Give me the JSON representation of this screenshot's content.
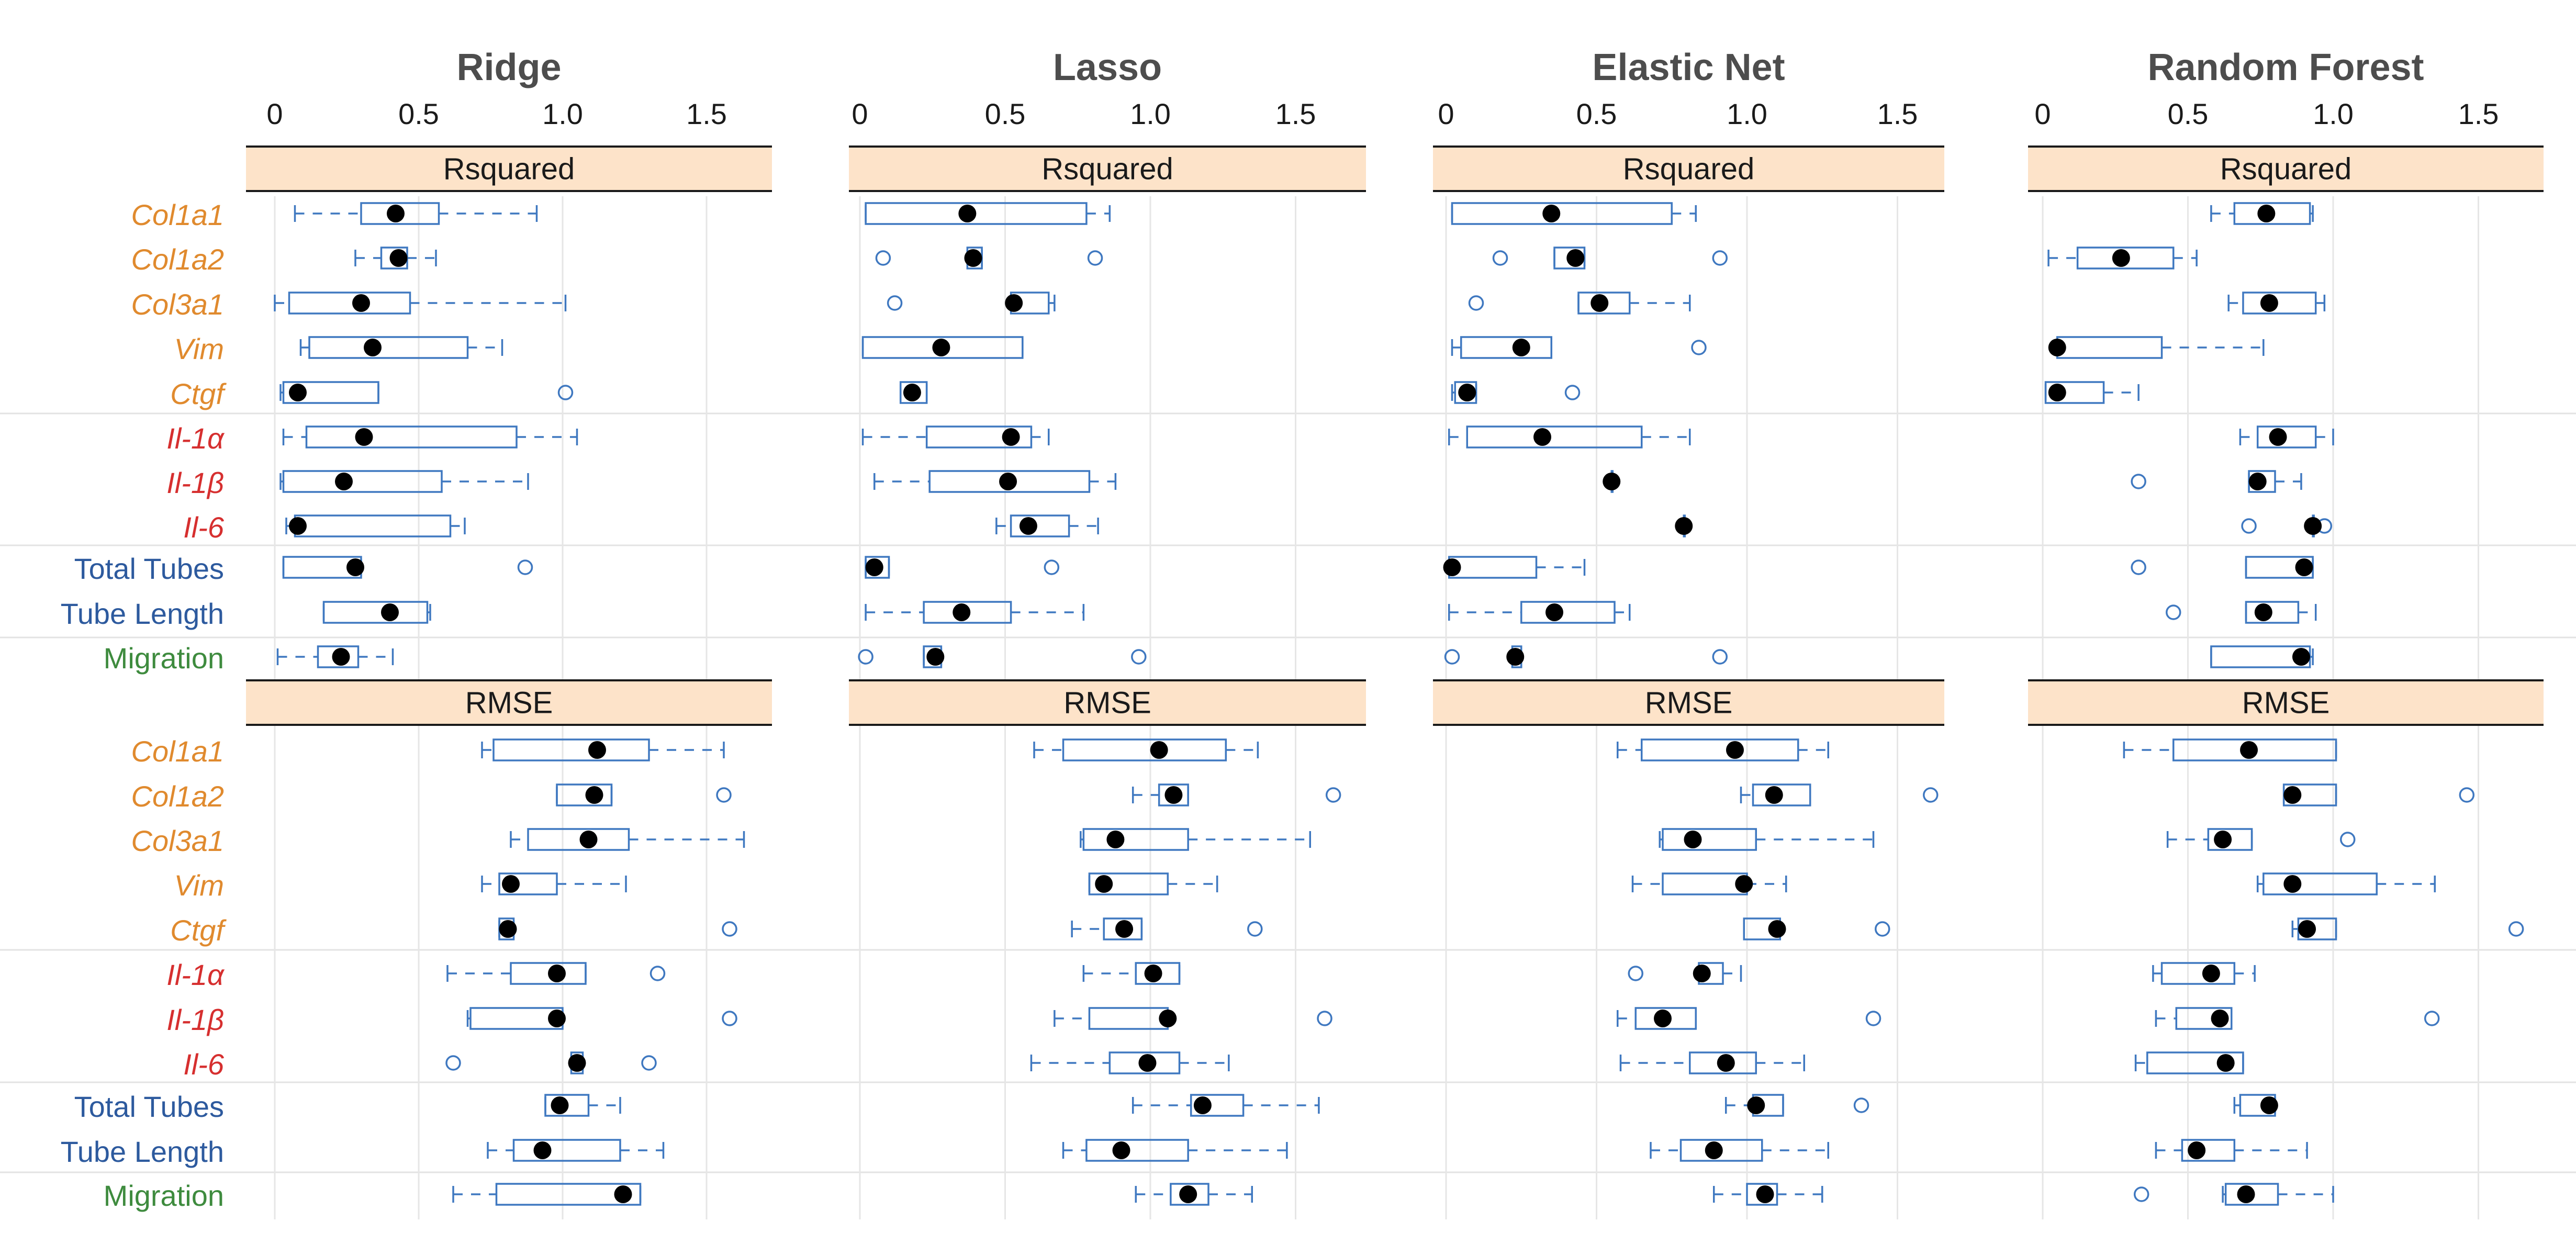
{
  "colors": {
    "fibrotic": "#E08A2E",
    "inflammatory": "#D62F2F",
    "tubes": "#2D5A9E",
    "migration": "#3E8B3E",
    "box": "#3F78C0",
    "strip_fill": "#FDE3C9",
    "grid": "#E6E6E6",
    "point": "#000000"
  },
  "chart_data": {
    "type": "boxplot",
    "x_ticks": [
      "0",
      "0.5",
      "1.0",
      "1.5"
    ],
    "xlim": [
      -0.1,
      1.72
    ],
    "metrics": [
      "Rsquared",
      "RMSE"
    ],
    "rows": [
      {
        "label": "Col1a1",
        "group": "fibrotic"
      },
      {
        "label": "Col1a2",
        "group": "fibrotic"
      },
      {
        "label": "Col3a1",
        "group": "fibrotic"
      },
      {
        "label": "Vim",
        "group": "fibrotic"
      },
      {
        "label": "Ctgf",
        "group": "fibrotic"
      },
      {
        "label": "Il-1α",
        "group": "inflammatory"
      },
      {
        "label": "Il-1β",
        "group": "inflammatory"
      },
      {
        "label": "Il-6",
        "group": "inflammatory"
      },
      {
        "label": "Total Tubes",
        "group": "tubes"
      },
      {
        "label": "Tube Length",
        "group": "tubes"
      },
      {
        "label": "Migration",
        "group": "migration"
      }
    ],
    "panels": [
      {
        "title": "Ridge",
        "Rsquared": [
          {
            "wl": 0.07,
            "q1": 0.3,
            "q3": 0.57,
            "wh": 0.91,
            "mean": 0.42,
            "out": []
          },
          {
            "wl": 0.28,
            "q1": 0.37,
            "q3": 0.46,
            "wh": 0.56,
            "mean": 0.43,
            "out": []
          },
          {
            "wl": 0.0,
            "q1": 0.05,
            "q3": 0.47,
            "wh": 1.01,
            "mean": 0.3,
            "out": []
          },
          {
            "wl": 0.09,
            "q1": 0.12,
            "q3": 0.67,
            "wh": 0.79,
            "mean": 0.34,
            "out": []
          },
          {
            "wl": 0.02,
            "q1": 0.03,
            "q3": 0.36,
            "wh": 0.36,
            "mean": 0.08,
            "out": [
              1.01
            ]
          },
          {
            "wl": 0.03,
            "q1": 0.11,
            "q3": 0.84,
            "wh": 1.05,
            "mean": 0.31,
            "out": []
          },
          {
            "wl": 0.02,
            "q1": 0.03,
            "q3": 0.58,
            "wh": 0.88,
            "mean": 0.24,
            "out": []
          },
          {
            "wl": 0.04,
            "q1": 0.07,
            "q3": 0.61,
            "wh": 0.66,
            "mean": 0.08,
            "out": []
          },
          {
            "wl": 0.03,
            "q1": 0.03,
            "q3": 0.3,
            "wh": 0.3,
            "mean": 0.28,
            "out": [
              0.87
            ]
          },
          {
            "wl": 0.17,
            "q1": 0.17,
            "q3": 0.53,
            "wh": 0.54,
            "mean": 0.4,
            "out": []
          },
          {
            "wl": 0.01,
            "q1": 0.15,
            "q3": 0.29,
            "wh": 0.41,
            "mean": 0.23,
            "out": []
          }
        ],
        "RMSE": [
          {
            "wl": 0.72,
            "q1": 0.76,
            "q3": 1.3,
            "wh": 1.56,
            "mean": 1.12,
            "out": []
          },
          {
            "wl": 0.98,
            "q1": 0.98,
            "q3": 1.17,
            "wh": 1.17,
            "mean": 1.11,
            "out": [
              1.56
            ]
          },
          {
            "wl": 0.82,
            "q1": 0.88,
            "q3": 1.23,
            "wh": 1.63,
            "mean": 1.09,
            "out": []
          },
          {
            "wl": 0.72,
            "q1": 0.78,
            "q3": 0.98,
            "wh": 1.22,
            "mean": 0.82,
            "out": []
          },
          {
            "wl": 0.78,
            "q1": 0.78,
            "q3": 0.83,
            "wh": 0.83,
            "mean": 0.81,
            "out": [
              1.58
            ]
          },
          {
            "wl": 0.6,
            "q1": 0.82,
            "q3": 1.08,
            "wh": 1.08,
            "mean": 0.98,
            "out": [
              1.33
            ]
          },
          {
            "wl": 0.67,
            "q1": 0.68,
            "q3": 1.0,
            "wh": 1.0,
            "mean": 0.98,
            "out": [
              1.58
            ]
          },
          {
            "wl": 1.03,
            "q1": 1.03,
            "q3": 1.07,
            "wh": 1.07,
            "mean": 1.05,
            "out": [
              0.62,
              1.3
            ]
          },
          {
            "wl": 0.94,
            "q1": 0.94,
            "q3": 1.09,
            "wh": 1.2,
            "mean": 0.99,
            "out": []
          },
          {
            "wl": 0.74,
            "q1": 0.83,
            "q3": 1.2,
            "wh": 1.35,
            "mean": 0.93,
            "out": []
          },
          {
            "wl": 0.62,
            "q1": 0.77,
            "q3": 1.27,
            "wh": 1.27,
            "mean": 1.21,
            "out": []
          }
        ]
      },
      {
        "title": "Lasso",
        "Rsquared": [
          {
            "wl": 0.02,
            "q1": 0.02,
            "q3": 0.78,
            "wh": 0.86,
            "mean": 0.37,
            "out": []
          },
          {
            "wl": 0.37,
            "q1": 0.37,
            "q3": 0.42,
            "wh": 0.42,
            "mean": 0.39,
            "out": [
              0.08,
              0.81
            ]
          },
          {
            "wl": 0.52,
            "q1": 0.52,
            "q3": 0.65,
            "wh": 0.67,
            "mean": 0.53,
            "out": [
              0.12
            ]
          },
          {
            "wl": 0.01,
            "q1": 0.01,
            "q3": 0.56,
            "wh": 0.56,
            "mean": 0.28,
            "out": []
          },
          {
            "wl": 0.14,
            "q1": 0.14,
            "q3": 0.23,
            "wh": 0.23,
            "mean": 0.18,
            "out": []
          },
          {
            "wl": 0.01,
            "q1": 0.23,
            "q3": 0.59,
            "wh": 0.65,
            "mean": 0.52,
            "out": []
          },
          {
            "wl": 0.05,
            "q1": 0.24,
            "q3": 0.79,
            "wh": 0.88,
            "mean": 0.51,
            "out": []
          },
          {
            "wl": 0.47,
            "q1": 0.52,
            "q3": 0.72,
            "wh": 0.82,
            "mean": 0.58,
            "out": []
          },
          {
            "wl": 0.02,
            "q1": 0.02,
            "q3": 0.1,
            "wh": 0.1,
            "mean": 0.05,
            "out": [
              0.66
            ]
          },
          {
            "wl": 0.02,
            "q1": 0.22,
            "q3": 0.52,
            "wh": 0.77,
            "mean": 0.35,
            "out": []
          },
          {
            "wl": 0.22,
            "q1": 0.22,
            "q3": 0.28,
            "wh": 0.28,
            "mean": 0.26,
            "out": [
              0.02,
              0.96
            ]
          }
        ],
        "RMSE": [
          {
            "wl": 0.6,
            "q1": 0.7,
            "q3": 1.26,
            "wh": 1.37,
            "mean": 1.03,
            "out": []
          },
          {
            "wl": 0.94,
            "q1": 1.03,
            "q3": 1.13,
            "wh": 1.13,
            "mean": 1.08,
            "out": [
              1.63
            ]
          },
          {
            "wl": 0.76,
            "q1": 0.77,
            "q3": 1.13,
            "wh": 1.55,
            "mean": 0.88,
            "out": []
          },
          {
            "wl": 0.79,
            "q1": 0.79,
            "q3": 1.06,
            "wh": 1.23,
            "mean": 0.84,
            "out": []
          },
          {
            "wl": 0.73,
            "q1": 0.84,
            "q3": 0.97,
            "wh": 0.97,
            "mean": 0.91,
            "out": [
              1.36
            ]
          },
          {
            "wl": 0.77,
            "q1": 0.95,
            "q3": 1.1,
            "wh": 1.1,
            "mean": 1.01,
            "out": []
          },
          {
            "wl": 0.67,
            "q1": 0.79,
            "q3": 1.06,
            "wh": 1.06,
            "mean": 1.06,
            "out": [
              1.6
            ]
          },
          {
            "wl": 0.59,
            "q1": 0.86,
            "q3": 1.1,
            "wh": 1.27,
            "mean": 0.99,
            "out": []
          },
          {
            "wl": 0.94,
            "q1": 1.14,
            "q3": 1.32,
            "wh": 1.58,
            "mean": 1.18,
            "out": []
          },
          {
            "wl": 0.7,
            "q1": 0.78,
            "q3": 1.13,
            "wh": 1.47,
            "mean": 0.9,
            "out": []
          },
          {
            "wl": 0.95,
            "q1": 1.07,
            "q3": 1.2,
            "wh": 1.35,
            "mean": 1.13,
            "out": []
          }
        ]
      },
      {
        "title": "Elastic Net",
        "Rsquared": [
          {
            "wl": 0.02,
            "q1": 0.02,
            "q3": 0.75,
            "wh": 0.83,
            "mean": 0.35,
            "out": []
          },
          {
            "wl": 0.36,
            "q1": 0.36,
            "q3": 0.46,
            "wh": 0.46,
            "mean": 0.43,
            "out": [
              0.18,
              0.91
            ]
          },
          {
            "wl": 0.44,
            "q1": 0.44,
            "q3": 0.61,
            "wh": 0.81,
            "mean": 0.51,
            "out": [
              0.1
            ]
          },
          {
            "wl": 0.02,
            "q1": 0.05,
            "q3": 0.35,
            "wh": 0.35,
            "mean": 0.25,
            "out": [
              0.84
            ]
          },
          {
            "wl": 0.02,
            "q1": 0.03,
            "q3": 0.1,
            "wh": 0.1,
            "mean": 0.07,
            "out": [
              0.42
            ]
          },
          {
            "wl": 0.01,
            "q1": 0.07,
            "q3": 0.65,
            "wh": 0.81,
            "mean": 0.32,
            "out": []
          },
          {
            "wl": 0.55,
            "q1": 0.55,
            "q3": 0.55,
            "wh": 0.55,
            "mean": 0.55,
            "out": []
          },
          {
            "wl": 0.79,
            "q1": 0.79,
            "q3": 0.79,
            "wh": 0.79,
            "mean": 0.79,
            "out": []
          },
          {
            "wl": 0.01,
            "q1": 0.01,
            "q3": 0.3,
            "wh": 0.46,
            "mean": 0.02,
            "out": []
          },
          {
            "wl": 0.01,
            "q1": 0.25,
            "q3": 0.56,
            "wh": 0.61,
            "mean": 0.36,
            "out": []
          },
          {
            "wl": 0.22,
            "q1": 0.22,
            "q3": 0.25,
            "wh": 0.25,
            "mean": 0.23,
            "out": [
              0.02,
              0.91
            ]
          }
        ],
        "RMSE": [
          {
            "wl": 0.57,
            "q1": 0.65,
            "q3": 1.17,
            "wh": 1.27,
            "mean": 0.96,
            "out": []
          },
          {
            "wl": 0.98,
            "q1": 1.02,
            "q3": 1.21,
            "wh": 1.21,
            "mean": 1.09,
            "out": [
              1.61
            ]
          },
          {
            "wl": 0.71,
            "q1": 0.72,
            "q3": 1.03,
            "wh": 1.42,
            "mean": 0.82,
            "out": []
          },
          {
            "wl": 0.62,
            "q1": 0.72,
            "q3": 1.0,
            "wh": 1.13,
            "mean": 0.99,
            "out": []
          },
          {
            "wl": 0.99,
            "q1": 0.99,
            "q3": 1.11,
            "wh": 1.11,
            "mean": 1.1,
            "out": [
              1.45
            ]
          },
          {
            "wl": 0.84,
            "q1": 0.84,
            "q3": 0.92,
            "wh": 0.98,
            "mean": 0.85,
            "out": [
              0.63
            ]
          },
          {
            "wl": 0.57,
            "q1": 0.63,
            "q3": 0.83,
            "wh": 0.83,
            "mean": 0.72,
            "out": [
              1.42
            ]
          },
          {
            "wl": 0.58,
            "q1": 0.81,
            "q3": 1.03,
            "wh": 1.19,
            "mean": 0.93,
            "out": []
          },
          {
            "wl": 0.93,
            "q1": 1.02,
            "q3": 1.12,
            "wh": 1.12,
            "mean": 1.03,
            "out": [
              1.38
            ]
          },
          {
            "wl": 0.68,
            "q1": 0.78,
            "q3": 1.05,
            "wh": 1.27,
            "mean": 0.89,
            "out": []
          },
          {
            "wl": 0.89,
            "q1": 1.0,
            "q3": 1.1,
            "wh": 1.25,
            "mean": 1.06,
            "out": []
          }
        ]
      },
      {
        "title": "Random Forest",
        "Rsquared": [
          {
            "wl": 0.58,
            "q1": 0.66,
            "q3": 0.92,
            "wh": 0.93,
            "mean": 0.77,
            "out": []
          },
          {
            "wl": 0.02,
            "q1": 0.12,
            "q3": 0.45,
            "wh": 0.53,
            "mean": 0.27,
            "out": []
          },
          {
            "wl": 0.64,
            "q1": 0.69,
            "q3": 0.94,
            "wh": 0.97,
            "mean": 0.78,
            "out": []
          },
          {
            "wl": 0.05,
            "q1": 0.05,
            "q3": 0.41,
            "wh": 0.76,
            "mean": 0.05,
            "out": []
          },
          {
            "wl": 0.01,
            "q1": 0.01,
            "q3": 0.21,
            "wh": 0.33,
            "mean": 0.05,
            "out": []
          },
          {
            "wl": 0.68,
            "q1": 0.74,
            "q3": 0.94,
            "wh": 1.0,
            "mean": 0.81,
            "out": []
          },
          {
            "wl": 0.71,
            "q1": 0.71,
            "q3": 0.8,
            "wh": 0.89,
            "mean": 0.74,
            "out": [
              0.33
            ]
          },
          {
            "wl": 0.93,
            "q1": 0.93,
            "q3": 0.93,
            "wh": 0.93,
            "mean": 0.93,
            "out": [
              0.71,
              0.97
            ]
          },
          {
            "wl": 0.7,
            "q1": 0.7,
            "q3": 0.93,
            "wh": 0.93,
            "mean": 0.9,
            "out": [
              0.33
            ]
          },
          {
            "wl": 0.7,
            "q1": 0.7,
            "q3": 0.88,
            "wh": 0.94,
            "mean": 0.76,
            "out": [
              0.45
            ]
          },
          {
            "wl": 0.58,
            "q1": 0.58,
            "q3": 0.92,
            "wh": 0.93,
            "mean": 0.89,
            "out": []
          }
        ],
        "RMSE": [
          {
            "wl": 0.28,
            "q1": 0.45,
            "q3": 1.01,
            "wh": 1.01,
            "mean": 0.71,
            "out": []
          },
          {
            "wl": 0.83,
            "q1": 0.83,
            "q3": 1.01,
            "wh": 1.01,
            "mean": 0.86,
            "out": [
              1.46
            ]
          },
          {
            "wl": 0.43,
            "q1": 0.57,
            "q3": 0.72,
            "wh": 0.72,
            "mean": 0.62,
            "out": [
              1.05
            ]
          },
          {
            "wl": 0.74,
            "q1": 0.76,
            "q3": 1.15,
            "wh": 1.35,
            "mean": 0.86,
            "out": []
          },
          {
            "wl": 0.86,
            "q1": 0.88,
            "q3": 1.01,
            "wh": 1.01,
            "mean": 0.91,
            "out": [
              1.63
            ]
          },
          {
            "wl": 0.38,
            "q1": 0.41,
            "q3": 0.66,
            "wh": 0.73,
            "mean": 0.58,
            "out": []
          },
          {
            "wl": 0.39,
            "q1": 0.46,
            "q3": 0.65,
            "wh": 0.65,
            "mean": 0.61,
            "out": [
              1.34
            ]
          },
          {
            "wl": 0.32,
            "q1": 0.36,
            "q3": 0.69,
            "wh": 0.69,
            "mean": 0.63,
            "out": []
          },
          {
            "wl": 0.66,
            "q1": 0.68,
            "q3": 0.8,
            "wh": 0.8,
            "mean": 0.78,
            "out": []
          },
          {
            "wl": 0.39,
            "q1": 0.48,
            "q3": 0.66,
            "wh": 0.91,
            "mean": 0.53,
            "out": []
          },
          {
            "wl": 0.62,
            "q1": 0.63,
            "q3": 0.81,
            "wh": 1.0,
            "mean": 0.7,
            "out": [
              0.34
            ]
          }
        ]
      }
    ]
  }
}
